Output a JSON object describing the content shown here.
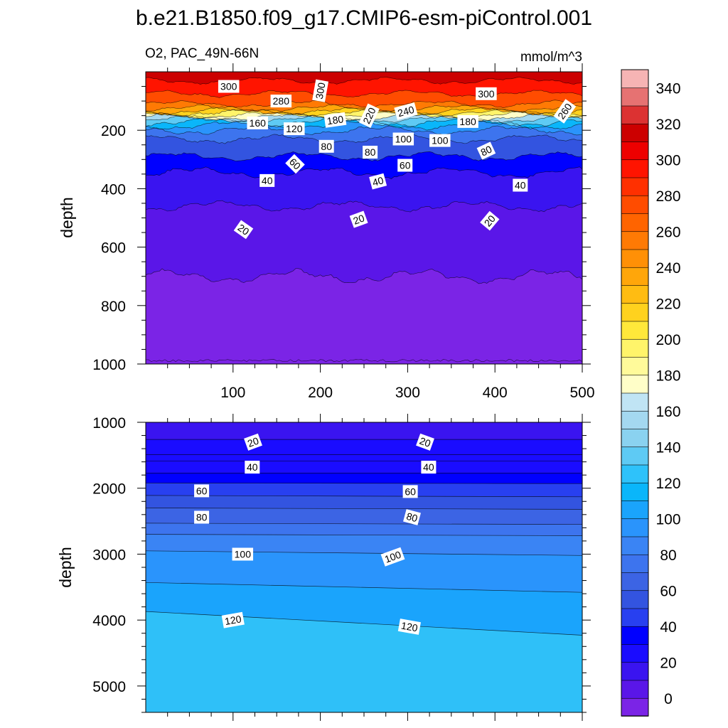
{
  "title": "b.e21.B1850.f09_g17.CMIP6-esm-piControl.001",
  "colors": {
    "levels": [
      0,
      10,
      20,
      30,
      40,
      50,
      60,
      70,
      80,
      90,
      100,
      110,
      120,
      130,
      140,
      150,
      160,
      170,
      180,
      190,
      200,
      210,
      220,
      230,
      240,
      250,
      260,
      270,
      280,
      290,
      300,
      310,
      320,
      330,
      340,
      350
    ],
    "fills": [
      "#7b24e6",
      "#5a16e8",
      "#3a14f0",
      "#1a0cff",
      "#0000ff",
      "#2840f0",
      "#3354e0",
      "#3c64e4",
      "#3d74ee",
      "#3a84f4",
      "#2a94fc",
      "#1aa4fc",
      "#0ab6fa",
      "#2ec2fa",
      "#5ecaf4",
      "#8ad2f0",
      "#a4d8f0",
      "#c0e4f4",
      "#fffec8",
      "#fffa9a",
      "#fff46a",
      "#ffe83a",
      "#ffd21e",
      "#ffbc12",
      "#ffa60a",
      "#ff9006",
      "#ff7a04",
      "#ff6400",
      "#ff4c00",
      "#ff3000",
      "#ff1400",
      "#ee0000",
      "#cc0000",
      "#dc3232",
      "#e67272",
      "#f6b4b4"
    ]
  },
  "chart_data": [
    {
      "type": "heatmap",
      "panel": "upper",
      "left_title": "O2, PAC_49N-66N",
      "right_title": "mmol/m^3",
      "ylabel": "depth",
      "xlim": [
        0,
        500
      ],
      "ylim": [
        1000,
        0
      ],
      "x_ticks": [
        100,
        200,
        300,
        400,
        500
      ],
      "y_ticks": [
        200,
        400,
        600,
        800,
        1000
      ],
      "contour_levels_depth_mean": {
        "320": 30,
        "300": 75,
        "280": 110,
        "260": 125,
        "240": 135,
        "220": 140,
        "200": 148,
        "180": 155,
        "160": 163,
        "140": 172,
        "120": 183,
        "100": 200,
        "80": 230,
        "60": 290,
        "40": 345,
        "20": 460,
        "10": 700,
        "0": 990
      },
      "contour_labels": [
        {
          "text": "300",
          "x": 95,
          "depth": 50,
          "angle": 0
        },
        {
          "text": "280",
          "x": 155,
          "depth": 100,
          "angle": 0
        },
        {
          "text": "300",
          "x": 200,
          "depth": 65,
          "angle": -80
        },
        {
          "text": "300",
          "x": 390,
          "depth": 75,
          "angle": 0
        },
        {
          "text": "260",
          "x": 480,
          "depth": 135,
          "angle": -55
        },
        {
          "text": "160",
          "x": 128,
          "depth": 175,
          "angle": 0
        },
        {
          "text": "120",
          "x": 170,
          "depth": 195,
          "angle": 0
        },
        {
          "text": "180",
          "x": 217,
          "depth": 165,
          "angle": -8
        },
        {
          "text": "220",
          "x": 256,
          "depth": 150,
          "angle": -65
        },
        {
          "text": "240",
          "x": 298,
          "depth": 135,
          "angle": -15
        },
        {
          "text": "180",
          "x": 369,
          "depth": 170,
          "angle": 0
        },
        {
          "text": "100",
          "x": 295,
          "depth": 230,
          "angle": 0
        },
        {
          "text": "100",
          "x": 337,
          "depth": 235,
          "angle": 0
        },
        {
          "text": "80",
          "x": 207,
          "depth": 255,
          "angle": 0
        },
        {
          "text": "80",
          "x": 257,
          "depth": 275,
          "angle": 0
        },
        {
          "text": "80",
          "x": 390,
          "depth": 270,
          "angle": -25
        },
        {
          "text": "60",
          "x": 171,
          "depth": 315,
          "angle": 45
        },
        {
          "text": "60",
          "x": 297,
          "depth": 320,
          "angle": 0
        },
        {
          "text": "40",
          "x": 139,
          "depth": 372,
          "angle": 0
        },
        {
          "text": "40",
          "x": 266,
          "depth": 375,
          "angle": -15
        },
        {
          "text": "40",
          "x": 429,
          "depth": 388,
          "angle": 0
        },
        {
          "text": "20",
          "x": 112,
          "depth": 540,
          "angle": 35
        },
        {
          "text": "20",
          "x": 244,
          "depth": 505,
          "angle": -20
        },
        {
          "text": "20",
          "x": 394,
          "depth": 510,
          "angle": -50
        }
      ]
    },
    {
      "type": "heatmap",
      "panel": "lower",
      "ylabel": "depth",
      "xlim": [
        0,
        500
      ],
      "ylim": [
        5400,
        1000
      ],
      "y_ticks": [
        1000,
        2000,
        3000,
        4000,
        5000
      ],
      "contour_labels": [
        {
          "text": "20",
          "x": 123,
          "depth": 1300,
          "angle": -20
        },
        {
          "text": "20",
          "x": 320,
          "depth": 1300,
          "angle": 20
        },
        {
          "text": "40",
          "x": 122,
          "depth": 1680,
          "angle": 0
        },
        {
          "text": "40",
          "x": 324,
          "depth": 1680,
          "angle": 0
        },
        {
          "text": "60",
          "x": 64,
          "depth": 2040,
          "angle": 0
        },
        {
          "text": "60",
          "x": 303,
          "depth": 2050,
          "angle": 0
        },
        {
          "text": "80",
          "x": 64,
          "depth": 2440,
          "angle": 0
        },
        {
          "text": "80",
          "x": 305,
          "depth": 2440,
          "angle": 15
        },
        {
          "text": "100",
          "x": 111,
          "depth": 3000,
          "angle": 0
        },
        {
          "text": "100",
          "x": 283,
          "depth": 3040,
          "angle": -20
        },
        {
          "text": "120",
          "x": 100,
          "depth": 4000,
          "angle": -10
        },
        {
          "text": "120",
          "x": 302,
          "depth": 4100,
          "angle": 10
        }
      ]
    },
    {
      "type": "colorbar",
      "labels": [
        "340",
        "320",
        "300",
        "280",
        "260",
        "240",
        "220",
        "200",
        "180",
        "160",
        "140",
        "120",
        "100",
        "80",
        "60",
        "40",
        "20",
        "0"
      ]
    }
  ]
}
